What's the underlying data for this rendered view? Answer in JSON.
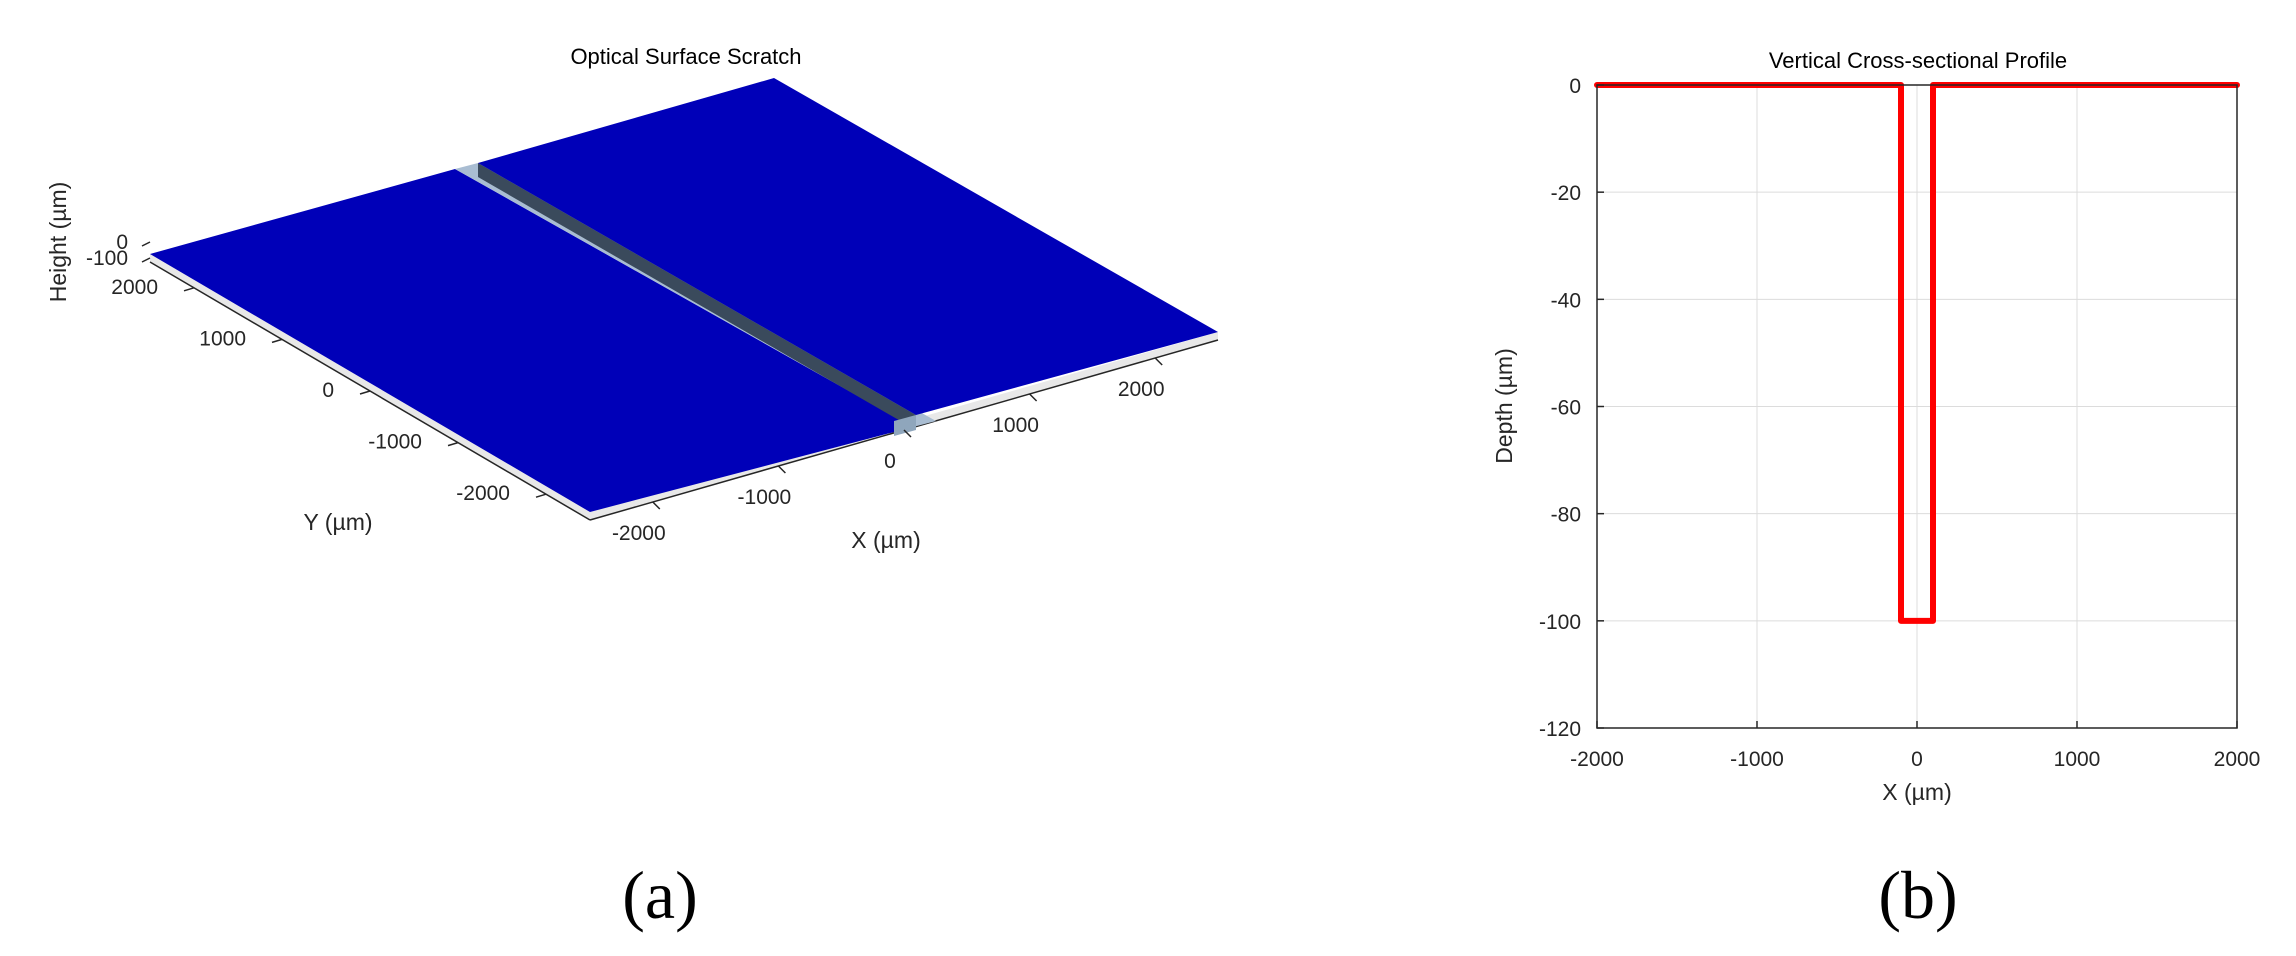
{
  "chart_data": [
    {
      "type": "surface",
      "title": "Optical Surface Scratch",
      "xlabel": "X (µm)",
      "ylabel": "Y (µm)",
      "zlabel": "Height (µm)",
      "x_ticks": [
        "-2000",
        "-1000",
        "0",
        "1000",
        "2000"
      ],
      "y_ticks": [
        "-2000",
        "-1000",
        "0",
        "1000",
        "2000"
      ],
      "z_ticks": [
        "-100",
        "0"
      ],
      "xlim": [
        -2500,
        2500
      ],
      "ylim": [
        -2500,
        2500
      ],
      "zlim": [
        -100,
        0
      ],
      "scratch": {
        "x_from": -100,
        "x_to": 100,
        "depth": -100
      },
      "colors": {
        "surface": "#0000b8",
        "groove_wall": "#3a4a5c",
        "groove_floor": "#a9bdd2"
      }
    },
    {
      "type": "line",
      "title": "Vertical Cross-sectional Profile",
      "xlabel": "X (µm)",
      "ylabel": "Depth (µm)",
      "xlim": [
        -2000,
        2000
      ],
      "ylim": [
        -120,
        0
      ],
      "grid": true,
      "x_ticks": [
        "-2000",
        "-1000",
        "0",
        "1000",
        "2000"
      ],
      "y_ticks": [
        "0",
        "-20",
        "-40",
        "-60",
        "-80",
        "-100",
        "-120"
      ],
      "series": [
        {
          "x": [
            -2000,
            -100,
            -100,
            100,
            100,
            2000
          ],
          "y": [
            0,
            0,
            -100,
            -100,
            0,
            0
          ],
          "color": "#ff0000"
        }
      ]
    }
  ],
  "captions": [
    "(a)",
    "(b)"
  ]
}
